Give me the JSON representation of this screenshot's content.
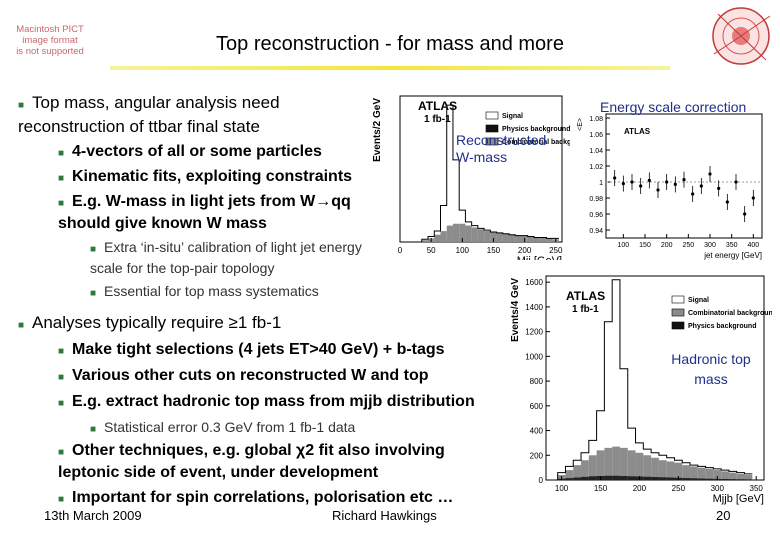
{
  "slide": {
    "title": "Top reconstruction - for mass and more",
    "pict_notice": [
      "Macintosh PICT",
      "image format",
      "is not supported"
    ],
    "bullets": [
      {
        "level": 1,
        "text": "Top mass, angular analysis need reconstruction of ttbar final state"
      },
      {
        "level": 2,
        "text": "4-vectors of all or some particles"
      },
      {
        "level": 2,
        "text": "Kinematic fits, exploiting constraints"
      },
      {
        "level": 2,
        "text": "E.g. W-mass in light jets from W→qq should give known W mass"
      },
      {
        "level": 3,
        "text": "Extra ‘in-situ’ calibration of light jet energy scale for the top-pair topology"
      },
      {
        "level": 3,
        "text": "Essential for top mass systematics"
      },
      {
        "level": 1,
        "text": "Analyses typically require ≥1 fb-1"
      },
      {
        "level": 2,
        "text": "Make tight selections (4 jets ET>40 GeV) + b-tags"
      },
      {
        "level": 2,
        "text": "Various other cuts on reconstructed W and top"
      },
      {
        "level": 2,
        "text": "E.g. extract hadronic top mass from mjjb distribution"
      },
      {
        "level": 3,
        "text": "Statistical error 0.3 GeV from 1 fb-1 data"
      },
      {
        "level": 2,
        "text": "Other techniques, e.g. global χ2 fit also involving leptonic side of event, under development"
      },
      {
        "level": 2,
        "text": "Important for spin correlations, polorisation etc …"
      }
    ],
    "labels": {
      "w_mass": "Reconstructed W-mass",
      "energy_scale": "Energy scale correction",
      "hadronic_top": "Hadronic top mass"
    },
    "footer": {
      "date": "13th March 2009",
      "author": "Richard Hawkings",
      "page": "20"
    }
  },
  "colors": {
    "bullet": "#2d7a3a",
    "title_rule": "#f3e73a",
    "label": "#1f2f8a"
  },
  "chart_data": [
    {
      "type": "bar",
      "title": "",
      "atlas_label": "ATLAS",
      "lumi_label": "1 fb-1",
      "xlabel": "Mjj [GeV]",
      "ylabel": "Events/2 GeV",
      "x_ticks": [
        "0",
        "50",
        "100",
        "150",
        "200",
        "250"
      ],
      "xlim": [
        0,
        260
      ],
      "legend": [
        "Signal",
        "Physics background",
        "Combinatorial background"
      ],
      "x": [
        40,
        50,
        60,
        70,
        80,
        90,
        100,
        110,
        120,
        130,
        140,
        150,
        160,
        170,
        180,
        190,
        200,
        210,
        220,
        230,
        240,
        250
      ],
      "series": [
        {
          "name": "Signal",
          "values": [
            3,
            6,
            12,
            40,
            150,
            90,
            35,
            22,
            18,
            15,
            13,
            11,
            10,
            9,
            8,
            7,
            7,
            6,
            5,
            5,
            4,
            4
          ]
        },
        {
          "name": "Combinatorial background",
          "values": [
            2,
            4,
            8,
            12,
            18,
            20,
            20,
            18,
            16,
            14,
            12,
            11,
            10,
            9,
            8,
            7,
            7,
            6,
            5,
            5,
            4,
            3
          ]
        }
      ]
    },
    {
      "type": "scatter",
      "atlas_label": "ATLAS",
      "ylabel": "<E>",
      "xlabel": "jet energy [GeV]",
      "x_ticks": [
        "100",
        "150",
        "200",
        "250",
        "300",
        "350",
        "400"
      ],
      "y_ticks": [
        "0.94",
        "0.96",
        "0.98",
        "1",
        "1.02",
        "1.04",
        "1.06",
        "1.08"
      ],
      "xlim": [
        60,
        420
      ],
      "ylim": [
        0.93,
        1.085
      ],
      "x": [
        80,
        100,
        120,
        140,
        160,
        180,
        200,
        220,
        240,
        260,
        280,
        300,
        320,
        340,
        360,
        380,
        400
      ],
      "values": [
        1.005,
        0.998,
        1.0,
        0.995,
        1.002,
        0.99,
        1.0,
        0.997,
        1.003,
        0.985,
        0.995,
        1.01,
        0.992,
        0.975,
        1.0,
        0.96,
        0.98
      ]
    },
    {
      "type": "bar",
      "atlas_label": "ATLAS",
      "lumi_label": "1 fb-1",
      "xlabel": "Mjjb [GeV]",
      "ylabel": "Events/4 GeV",
      "x_ticks": [
        "100",
        "150",
        "200",
        "250",
        "300",
        "350"
      ],
      "y_ticks": [
        "0",
        "200",
        "400",
        "600",
        "800",
        "1000",
        "1200",
        "1400",
        "1600"
      ],
      "xlim": [
        80,
        360
      ],
      "ylim": [
        0,
        1650
      ],
      "legend": [
        "Signal",
        "Combinatorial background",
        "Physics background"
      ],
      "x": [
        100,
        110,
        120,
        130,
        140,
        150,
        160,
        170,
        180,
        190,
        200,
        210,
        220,
        230,
        240,
        250,
        260,
        270,
        280,
        290,
        300,
        310,
        320,
        330,
        340
      ],
      "series": [
        {
          "name": "Signal",
          "values": [
            60,
            110,
            160,
            220,
            320,
            560,
            1280,
            1620,
            900,
            420,
            300,
            250,
            220,
            200,
            180,
            160,
            140,
            120,
            110,
            100,
            90,
            80,
            70,
            60,
            50
          ]
        },
        {
          "name": "Combinatorial background",
          "values": [
            40,
            80,
            120,
            160,
            200,
            240,
            260,
            270,
            260,
            240,
            220,
            200,
            180,
            160,
            150,
            140,
            120,
            110,
            100,
            90,
            80,
            70,
            60,
            50,
            40
          ]
        },
        {
          "name": "Physics background",
          "values": [
            10,
            15,
            20,
            25,
            30,
            32,
            34,
            34,
            32,
            30,
            28,
            26,
            24,
            22,
            20,
            18,
            16,
            14,
            12,
            10,
            9,
            8,
            7,
            6,
            5
          ]
        }
      ]
    }
  ]
}
